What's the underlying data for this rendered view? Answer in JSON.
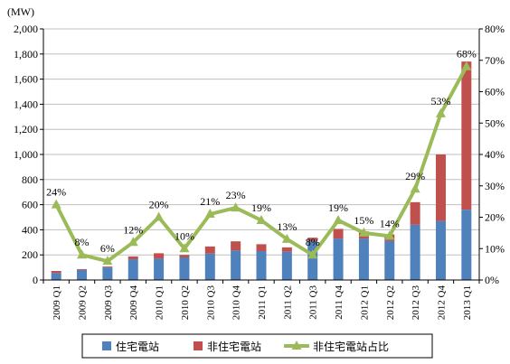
{
  "chart_data": {
    "type": "bar",
    "stacked": true,
    "unit_label": "(MW)",
    "categories": [
      "2009 Q1",
      "2009 Q2",
      "2009 Q3",
      "2009 Q4",
      "2010 Q1",
      "2010 Q2",
      "2010 Q3",
      "2010 Q4",
      "2011 Q1",
      "2011 Q2",
      "2011 Q3",
      "2011 Q4",
      "2012 Q1",
      "2012 Q2",
      "2012 Q3",
      "2012 Q4",
      "2013 Q1"
    ],
    "series": [
      {
        "name": "住宅電站",
        "type": "bar",
        "axis": "left",
        "color": "#4f81bd",
        "values": [
          55,
          80,
          100,
          165,
          170,
          180,
          210,
          235,
          230,
          225,
          310,
          330,
          330,
          310,
          440,
          470,
          560
        ]
      },
      {
        "name": "非住宅電站",
        "type": "bar",
        "axis": "left",
        "color": "#c0504d",
        "values": [
          17,
          7,
          7,
          23,
          43,
          20,
          57,
          73,
          55,
          35,
          27,
          77,
          57,
          53,
          180,
          530,
          1180
        ]
      },
      {
        "name": "非住宅電站占比",
        "type": "line",
        "axis": "right",
        "color": "#9bbb59",
        "values": [
          24,
          8,
          6,
          12,
          20,
          10,
          21,
          23,
          19,
          13,
          8,
          19,
          15,
          14,
          29,
          53,
          68
        ]
      }
    ],
    "data_labels": [
      "24%",
      "8%",
      "6%",
      "12%",
      "20%",
      "10%",
      "21%",
      "23%",
      "19%",
      "13%",
      "8%",
      "19%",
      "15%",
      "14%",
      "29%",
      "53%",
      "68%"
    ],
    "y_left": {
      "min": 0,
      "max": 2000,
      "step": 200,
      "tick_labels": [
        "0",
        "200",
        "400",
        "600",
        "800",
        "1,000",
        "1,200",
        "1,400",
        "1,600",
        "1,800",
        "2,000"
      ]
    },
    "y_right": {
      "min": 0,
      "max": 80,
      "step": 10,
      "tick_labels": [
        "0%",
        "10%",
        "20%",
        "30%",
        "40%",
        "50%",
        "60%",
        "70%",
        "80%"
      ]
    },
    "grid": "horizontal",
    "legend_position": "bottom"
  }
}
